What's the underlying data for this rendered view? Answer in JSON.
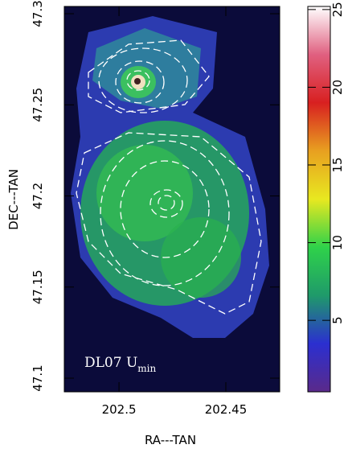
{
  "chart_data": {
    "type": "image",
    "xlabel": "RA---TAN",
    "ylabel": "DEC---TAN",
    "xlim": [
      202.5256,
      202.4248
    ],
    "xticks": [
      202.5,
      202.45
    ],
    "ylim": [
      47.0925,
      47.304
    ],
    "yticks": [
      47.1,
      47.15,
      47.2,
      47.25,
      47.3
    ],
    "annotation": {
      "text": "DL07 U",
      "subscript": "min"
    },
    "colorbar": {
      "clim": [
        0.4,
        25.2
      ],
      "ticks": [
        5,
        10,
        15,
        20,
        25
      ],
      "colors": [
        "#5a2a8a",
        "#2b2fd0",
        "#1f9a6a",
        "#2fd24a",
        "#e8e820",
        "#e8a020",
        "#d82020",
        "#e06080",
        "#ffffff"
      ]
    }
  }
}
